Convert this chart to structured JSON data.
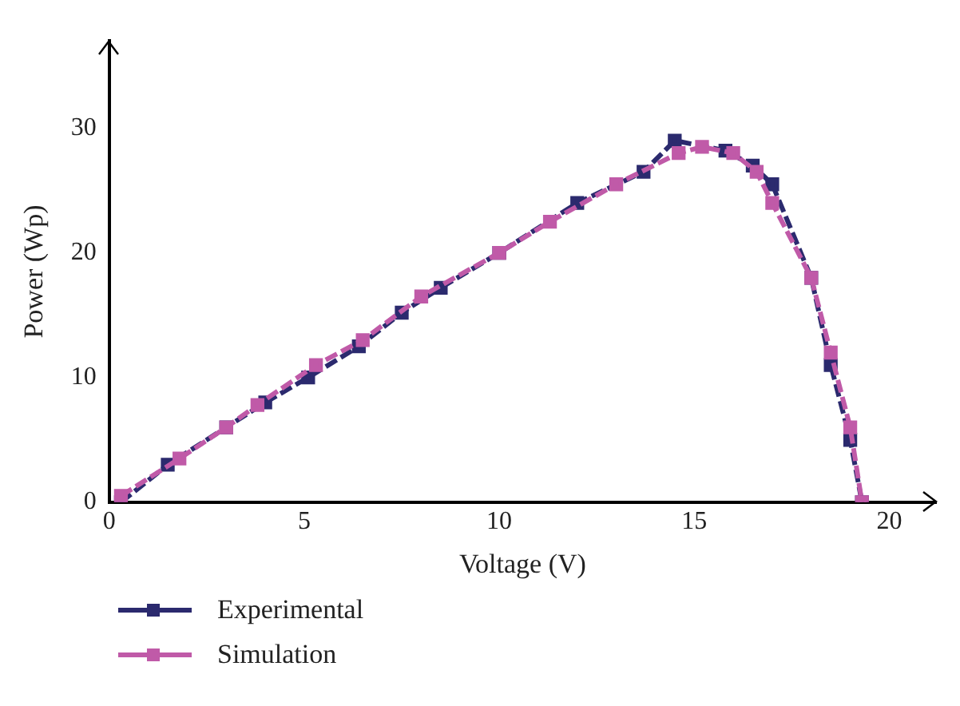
{
  "chart_data": {
    "type": "line",
    "xlabel": "Voltage (V)",
    "ylabel": "Power (Wp)",
    "xlim": [
      0,
      21.2
    ],
    "ylim": [
      0,
      37
    ],
    "xticks": [
      0,
      5,
      10,
      15,
      20
    ],
    "yticks": [
      0,
      10,
      20,
      30
    ],
    "grid": false,
    "legend": "bottom",
    "marker": "square",
    "line_style": "dashed",
    "series": [
      {
        "name": "Experimental",
        "color": "#2b2a6e",
        "x": [
          0.3,
          1.5,
          3,
          4,
          5.1,
          6.4,
          7.5,
          8.5,
          10,
          12,
          13.7,
          14.5,
          15.8,
          16.5,
          17,
          18,
          18.5,
          19,
          19.3
        ],
        "values": [
          0,
          3,
          6,
          8,
          10,
          12.5,
          15.2,
          17.2,
          20,
          24,
          26.5,
          29,
          28.2,
          27,
          25.5,
          18,
          11,
          5,
          0
        ]
      },
      {
        "name": "Simulation",
        "color": "#c05aa8",
        "x": [
          0.3,
          1.8,
          3,
          3.8,
          5.3,
          6.5,
          8,
          10,
          11.3,
          13,
          14.6,
          15.2,
          16,
          16.6,
          17,
          18,
          18.5,
          19,
          19.3
        ],
        "values": [
          0.5,
          3.5,
          6,
          7.8,
          11,
          13,
          16.5,
          20,
          22.5,
          25.5,
          28,
          28.5,
          28,
          26.5,
          24,
          18,
          12,
          6,
          0
        ]
      }
    ]
  }
}
